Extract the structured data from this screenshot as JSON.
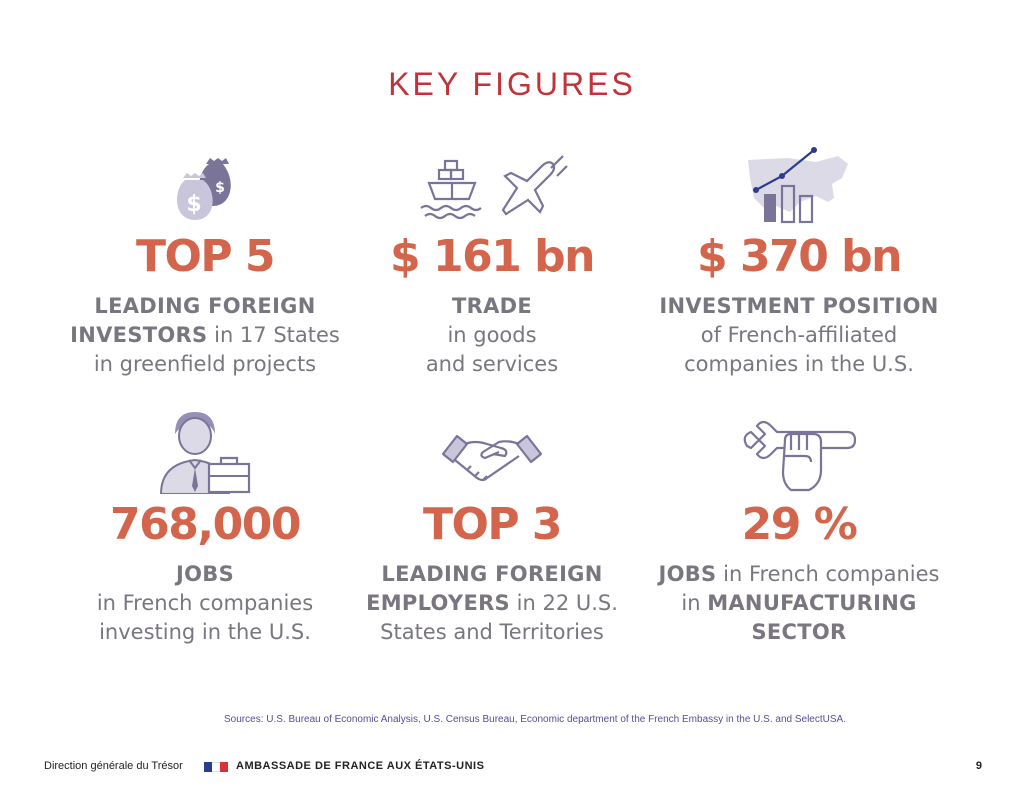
{
  "title": "KEY FIGURES",
  "cards": [
    {
      "icon": "money-bags-icon",
      "figure": "TOP 5",
      "lines": [
        {
          "bold": "LEADING FOREIGN",
          "rest": ""
        },
        {
          "bold": "INVESTORS",
          "rest": " in 17 States"
        },
        {
          "bold": "",
          "rest": "in greenfield projects"
        }
      ]
    },
    {
      "icon": "ship-and-plane-icon",
      "figure": "$ 161 bn",
      "lines": [
        {
          "bold": "TRADE",
          "rest": ""
        },
        {
          "bold": "",
          "rest": "in goods"
        },
        {
          "bold": "",
          "rest": "and services"
        }
      ]
    },
    {
      "icon": "us-map-growth-chart-icon",
      "figure": "$ 370 bn",
      "lines": [
        {
          "bold": "INVESTMENT POSITION",
          "rest": ""
        },
        {
          "bold": "",
          "rest": "of French-affiliated"
        },
        {
          "bold": "",
          "rest": "companies in the U.S."
        }
      ]
    },
    {
      "icon": "worker-with-briefcase-icon",
      "figure": "768,000",
      "lines": [
        {
          "bold": "JOBS",
          "rest": ""
        },
        {
          "bold": "",
          "rest": "in French companies"
        },
        {
          "bold": "",
          "rest": "investing in the U.S."
        }
      ]
    },
    {
      "icon": "handshake-icon",
      "figure": "TOP 3",
      "lines": [
        {
          "bold": "LEADING FOREIGN",
          "rest": ""
        },
        {
          "bold": "EMPLOYERS",
          "rest": " in 22 U.S."
        },
        {
          "bold": "",
          "rest": "States and Territories"
        }
      ]
    },
    {
      "icon": "wrench-fist-icon",
      "figure": "29 %",
      "lines": [
        {
          "bold": "JOBS",
          "rest": " in French companies"
        },
        {
          "bold": "",
          "rest": "in "
        },
        {
          "bold": "SECTOR",
          "rest": ""
        }
      ]
    }
  ],
  "card6_line2_bold": "MANUFACTURING",
  "sources": "Sources: U.S. Bureau of Economic Analysis, U.S. Census Bureau, Economic department of the French Embassy in the U.S. and SelectUSA.",
  "footer": {
    "left": "Direction générale du Trésor",
    "embassy": "AMBASSADE DE FRANCE AUX ÉTATS-UNIS",
    "page": "9"
  },
  "colors": {
    "title": "#c0333a",
    "figure": "#d2654c",
    "text": "#7a7680",
    "icon_dark": "#7a7498",
    "icon_light": "#c9c6dc",
    "flag_blue": "#2b3b8f",
    "flag_red": "#d8323a"
  }
}
